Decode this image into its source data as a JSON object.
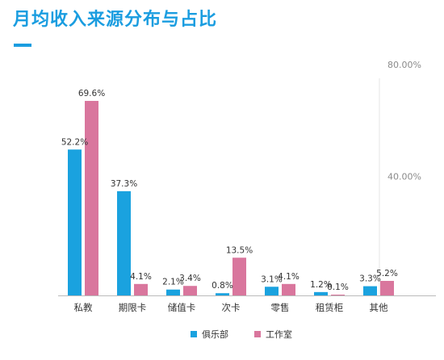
{
  "title": "月均收入来源分布与占比",
  "colors": {
    "title": "#1a9de0",
    "series_1": "#1aa2df",
    "series_2": "#d9769d",
    "grid": "#e6e6e6",
    "axis": "#bbbbbb"
  },
  "chart_data": {
    "type": "bar",
    "title": "月均收入来源分布与占比",
    "categories": [
      "私教",
      "期限卡",
      "储值卡",
      "次卡",
      "零售",
      "租赁柜",
      "其他"
    ],
    "series": [
      {
        "name": "俱乐部",
        "values": [
          52.2,
          37.3,
          2.1,
          0.8,
          3.1,
          1.2,
          3.3
        ],
        "labels": [
          "52.2%",
          "37.3%",
          "2.1%",
          "0.8%",
          "3.1%",
          "1.2%",
          "3.3%"
        ]
      },
      {
        "name": "工作室",
        "values": [
          69.6,
          4.1,
          3.4,
          13.5,
          4.1,
          0.1,
          5.2
        ],
        "labels": [
          "69.6%",
          "4.1%",
          "3.4%",
          "13.5%",
          "4.1%",
          "0.1%",
          "5.2%"
        ]
      }
    ],
    "yticks": [
      "80.00%",
      "40.00%"
    ],
    "ylim": [
      0,
      80
    ],
    "legend_position": "bottom",
    "grid": true
  }
}
